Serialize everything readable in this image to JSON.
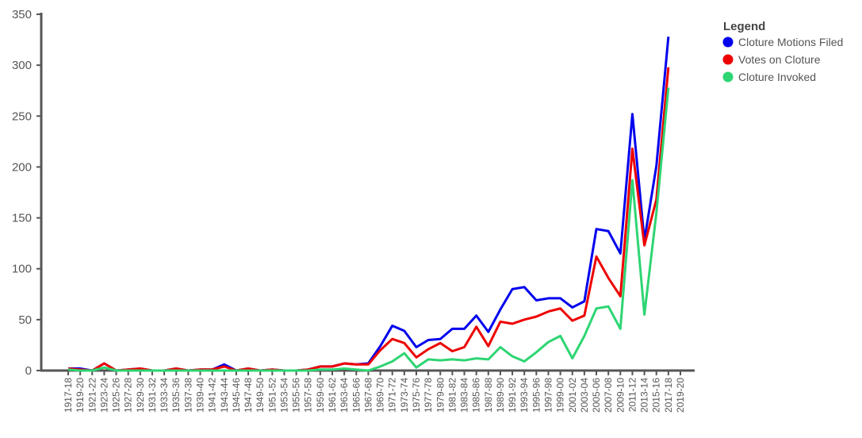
{
  "chart_data": {
    "type": "line",
    "categories": [
      "1917-18",
      "1919-20",
      "1921-22",
      "1923-24",
      "1925-26",
      "1927-28",
      "1929-30",
      "1931-32",
      "1933-34",
      "1935-36",
      "1937-38",
      "1939-40",
      "1941-42",
      "1943-44",
      "1945-46",
      "1947-48",
      "1949-50",
      "1951-52",
      "1953-54",
      "1955-56",
      "1957-58",
      "1959-60",
      "1961-62",
      "1963-64",
      "1965-66",
      "1967-68",
      "1969-70",
      "1971-72",
      "1973-74",
      "1975-76",
      "1977-78",
      "1979-80",
      "1981-82",
      "1983-84",
      "1985-86",
      "1987-88",
      "1989-90",
      "1991-92",
      "1993-94",
      "1995-96",
      "1997-98",
      "1999-00",
      "2001-02",
      "2003-04",
      "2005-06",
      "2007-08",
      "2009-10",
      "2011-12",
      "2013-14",
      "2015-16",
      "2017-18",
      "2019-20"
    ],
    "series": [
      {
        "name": "Cloture Motions Filed",
        "color": "#0000ee",
        "values": [
          2,
          2,
          0,
          7,
          0,
          1,
          2,
          0,
          0,
          2,
          0,
          1,
          1,
          6,
          0,
          2,
          0,
          1,
          0,
          0,
          1,
          4,
          4,
          7,
          6,
          7,
          24,
          44,
          39,
          23,
          30,
          31,
          41,
          41,
          54,
          38,
          60,
          80,
          82,
          69,
          71,
          71,
          62,
          68,
          139,
          137,
          115,
          252,
          128,
          201,
          328,
          null
        ]
      },
      {
        "name": "Votes on Cloture",
        "color": "#ee0000",
        "values": [
          2,
          1,
          0,
          7,
          0,
          1,
          2,
          0,
          0,
          2,
          0,
          1,
          1,
          4,
          0,
          2,
          0,
          1,
          0,
          0,
          1,
          4,
          4,
          7,
          6,
          6,
          20,
          31,
          27,
          13,
          21,
          27,
          19,
          23,
          43,
          24,
          48,
          46,
          50,
          53,
          58,
          61,
          49,
          54,
          112,
          91,
          73,
          218,
          123,
          168,
          298,
          null
        ]
      },
      {
        "name": "Cloture Invoked",
        "color": "#2ed573",
        "values": [
          1,
          0,
          0,
          3,
          0,
          0,
          0,
          0,
          0,
          0,
          0,
          0,
          0,
          0,
          0,
          0,
          0,
          0,
          0,
          0,
          0,
          1,
          1,
          2,
          1,
          0,
          4,
          9,
          17,
          3,
          11,
          10,
          11,
          10,
          12,
          11,
          23,
          14,
          9,
          18,
          28,
          34,
          12,
          34,
          61,
          63,
          41,
          187,
          55,
          155,
          278,
          null
        ]
      }
    ],
    "ylim": [
      0,
      350
    ],
    "yticks": [
      0,
      50,
      100,
      150,
      200,
      250,
      300,
      350
    ],
    "legend": {
      "title": "Legend",
      "position": "right"
    }
  }
}
